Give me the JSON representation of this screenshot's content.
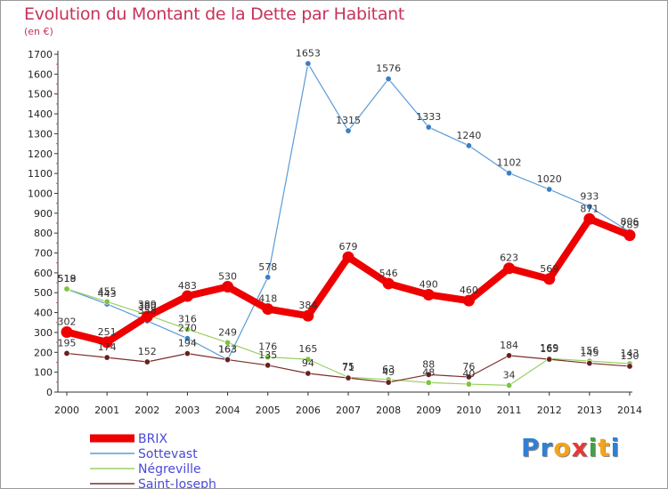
{
  "title": "Evolution du Montant de la Dette par Habitant",
  "subtitle": "(en €)",
  "logo": {
    "text": "Proxiti",
    "letters": [
      "P",
      "r",
      "o",
      "x",
      "i",
      "t",
      "i"
    ],
    "colors": [
      "#2f7fd6",
      "#2f7fd6",
      "#f5a31a",
      "#e53935",
      "#43a047",
      "#f5a31a",
      "#2f7fd6"
    ]
  },
  "chart_data": {
    "type": "line",
    "title": "Evolution du Montant de la Dette par Habitant",
    "ylabel": "(en €)",
    "x": [
      "2000",
      "2001",
      "2002",
      "2003",
      "2004",
      "2005",
      "2006",
      "2007",
      "2008",
      "2009",
      "2010",
      "2011",
      "2012",
      "2013",
      "2014"
    ],
    "ylim": [
      0,
      1700
    ],
    "yticks": [
      0,
      100,
      200,
      300,
      400,
      500,
      600,
      700,
      800,
      900,
      1000,
      1100,
      1200,
      1300,
      1400,
      1500,
      1600,
      1700
    ],
    "grid": false,
    "legend": "bottom-left",
    "series": [
      {
        "name": "Sottevast",
        "color": "#5b9bd5",
        "width": 1.2,
        "point": "#3a7fc6",
        "values": [
          518,
          443,
          358,
          270,
          163,
          578,
          1653,
          1315,
          1576,
          1333,
          1240,
          1102,
          1020,
          933,
          806
        ],
        "labels": [
          518,
          443,
          358,
          270,
          163,
          578,
          1653,
          1315,
          1576,
          1333,
          1240,
          1102,
          1020,
          933,
          806
        ]
      },
      {
        "name": "Négreville",
        "color": "#9ad060",
        "width": 1.2,
        "point": "#7cc440",
        "values": [
          519,
          455,
          389,
          316,
          249,
          176,
          165,
          75,
          63,
          48,
          40,
          34,
          169,
          156,
          143
        ],
        "labels": [
          519,
          455,
          389,
          316,
          249,
          176,
          165,
          75,
          63,
          48,
          40,
          34,
          169,
          156,
          143
        ]
      },
      {
        "name": "Saint-Joseph",
        "color": "#7a2e2e",
        "width": 1.2,
        "point": "#6a2020",
        "values": [
          195,
          174,
          152,
          194,
          163,
          135,
          94,
          71,
          49,
          88,
          76,
          184,
          165,
          145,
          130
        ],
        "labels": [
          195,
          174,
          152,
          194,
          163,
          135,
          94,
          71,
          49,
          88,
          76,
          184,
          165,
          145,
          130
        ]
      },
      {
        "name": "BRIX",
        "color": "#ee0000",
        "width": 8,
        "point": "#ee0000",
        "values": [
          302,
          251,
          380,
          483,
          530,
          418,
          384,
          679,
          546,
          490,
          460,
          623,
          569,
          871,
          789
        ],
        "labels": [
          302,
          251,
          380,
          483,
          530,
          418,
          384,
          679,
          546,
          490,
          460,
          623,
          569,
          871,
          789
        ]
      }
    ],
    "legend_order": [
      "BRIX",
      "Sottevast",
      "Négreville",
      "Saint-Joseph"
    ]
  }
}
